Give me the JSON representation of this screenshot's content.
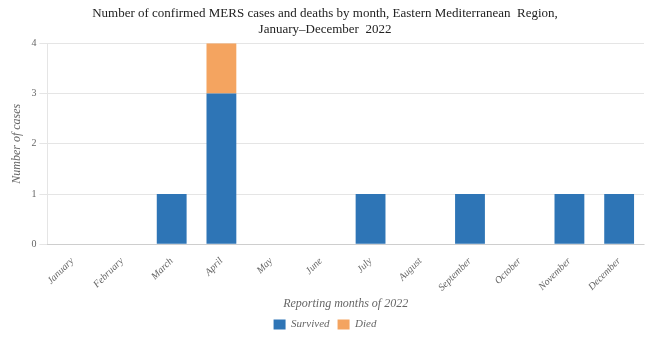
{
  "chart_data": {
    "type": "bar",
    "title": "Number of confirmed MERS cases and deaths by month, Eastern Mediterranean  Region,\nJanuary–December  2022",
    "xlabel": "Reporting months of 2022",
    "ylabel": "Number of cases",
    "categories": [
      "January",
      "February",
      "March",
      "April",
      "May",
      "June",
      "July",
      "August",
      "September",
      "October",
      "November",
      "December"
    ],
    "series": [
      {
        "name": "Survived",
        "color": "#2e75b6",
        "values": [
          0,
          0,
          1,
          3,
          0,
          0,
          1,
          0,
          1,
          0,
          1,
          1
        ]
      },
      {
        "name": "Died",
        "color": "#f4a460",
        "values": [
          0,
          0,
          0,
          1,
          0,
          0,
          0,
          0,
          0,
          0,
          0,
          0
        ]
      }
    ],
    "stacked": true,
    "ylim": [
      0,
      4
    ],
    "yticks": [
      0,
      1,
      2,
      3,
      4
    ],
    "grid": true,
    "legend": "bottom"
  }
}
